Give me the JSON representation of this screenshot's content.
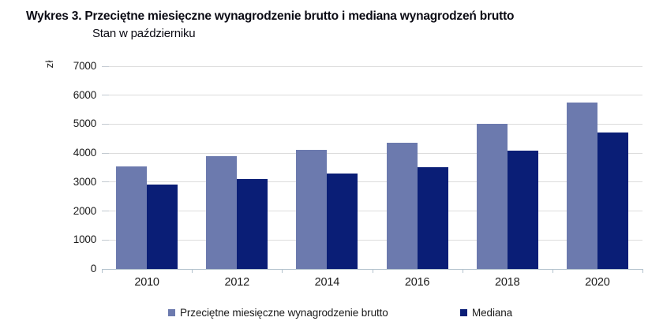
{
  "title": "Wykres 3. Przeciętne miesięczne wynagrodzenie brutto i mediana wynagrodzeń brutto",
  "subtitle": "Stan w październiku",
  "y_axis_unit": "zł",
  "chart_data": {
    "type": "bar",
    "title": "Przeciętne miesięczne wynagrodzenie brutto i mediana wynagrodzeń brutto",
    "subtitle": "Stan w październiku",
    "ylabel": "zł",
    "xlabel": "",
    "ylim": [
      0,
      7000
    ],
    "y_ticks": [
      0,
      1000,
      2000,
      3000,
      4000,
      5000,
      6000,
      7000
    ],
    "grid": "horizontal",
    "legend_position": "bottom",
    "categories": [
      "2010",
      "2012",
      "2014",
      "2016",
      "2018",
      "2020"
    ],
    "series": [
      {
        "name": "Przeciętne miesięczne wynagrodzenie brutto",
        "color": "#6c7aae",
        "values": [
          3544,
          3896,
          4108,
          4347,
          5004,
          5748
        ]
      },
      {
        "name": "Mediana",
        "color": "#0a1e76",
        "values": [
          2907,
          3115,
          3292,
          3511,
          4095,
          4703
        ]
      }
    ]
  },
  "colors": {
    "series_average": "#6c7aae",
    "series_median": "#0a1e76",
    "gridline": "#dcdcdc",
    "axis": "#b3c2cd",
    "text": "#1a1a1a"
  }
}
